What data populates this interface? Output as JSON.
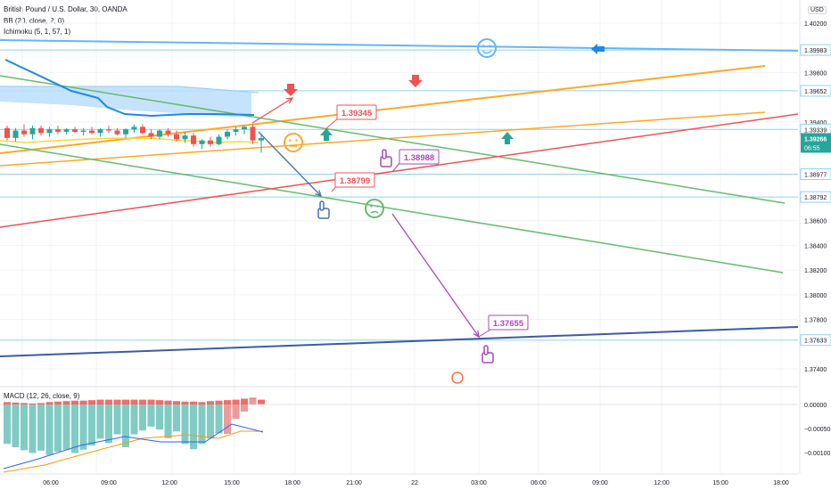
{
  "header": {
    "title": "British Pound / U.S. Dollar, 30, OANDA",
    "indicator_bb": "BB (20, close, 2, 0)",
    "indicator_ichimoku": "Ichimoku (5, 1, 57, 1)",
    "currency": "USD"
  },
  "macd_label": "MACD (12, 26, close, 9)",
  "colors": {
    "up": "#26a69a",
    "down": "#ef5350",
    "trend_green": "#66bb6a",
    "trend_orange": "#ffa726",
    "trend_red": "#ef5350",
    "trend_navy": "#3c5aa6",
    "trend_blue": "#64b5f6",
    "annotation_purple": "#ab47bc",
    "cloud": "#bbdefb",
    "conversion": "#1e88e5",
    "hline": "#8fd3f0",
    "grid": "#f0f3fa"
  },
  "chart_data": {
    "type": "candlestick",
    "symbol": "GBPUSD",
    "timeframe": "30",
    "y_ticks": [
      1.402,
      1.398,
      1.394,
      1.386,
      1.384,
      1.382,
      1.38,
      1.378,
      1.374
    ],
    "x_ticks": [
      "06:00",
      "09:00",
      "12:00",
      "15:00",
      "18:00",
      "21:00",
      "22",
      "03:00",
      "06:00",
      "09:00",
      "12:00",
      "15:00",
      "18:00"
    ],
    "price_labels": [
      {
        "text": "1.39983",
        "value": 1.39983
      },
      {
        "text": "1.39652",
        "value": 1.39652
      },
      {
        "text": "1.39339",
        "value": 1.39339
      },
      {
        "text": "1.38977",
        "value": 1.38977
      },
      {
        "text": "1.38792",
        "value": 1.38792
      },
      {
        "text": "1.37633",
        "value": 1.37633
      }
    ],
    "current_price": {
      "text": "1.39266",
      "countdown": "06:55",
      "value": 1.39266
    },
    "annotations": [
      "1.39345",
      "1.38988",
      "1.38799",
      "1.37655"
    ],
    "candles": [
      [
        1.3935,
        1.3937,
        1.3925,
        1.3927
      ],
      [
        1.3927,
        1.3935,
        1.3924,
        1.3933
      ],
      [
        1.3933,
        1.3938,
        1.3928,
        1.393
      ],
      [
        1.393,
        1.3937,
        1.3926,
        1.3935
      ],
      [
        1.3935,
        1.3937,
        1.3929,
        1.3931
      ],
      [
        1.3931,
        1.3936,
        1.3928,
        1.3934
      ],
      [
        1.3934,
        1.3937,
        1.393,
        1.3932
      ],
      [
        1.3932,
        1.3935,
        1.393,
        1.3934
      ],
      [
        1.3934,
        1.3936,
        1.3931,
        1.3932
      ],
      [
        1.3932,
        1.3935,
        1.3929,
        1.3933
      ],
      [
        1.3933,
        1.3936,
        1.393,
        1.3931
      ],
      [
        1.3931,
        1.3935,
        1.3928,
        1.3934
      ],
      [
        1.3934,
        1.3937,
        1.3931,
        1.3933
      ],
      [
        1.3933,
        1.3935,
        1.3929,
        1.393
      ],
      [
        1.393,
        1.3935,
        1.3927,
        1.3934
      ],
      [
        1.3934,
        1.3938,
        1.3931,
        1.3936
      ],
      [
        1.3936,
        1.3938,
        1.393,
        1.3931
      ],
      [
        1.3931,
        1.3934,
        1.3926,
        1.3928
      ],
      [
        1.3928,
        1.3934,
        1.3926,
        1.3933
      ],
      [
        1.3933,
        1.3935,
        1.3928,
        1.393
      ],
      [
        1.393,
        1.3933,
        1.3924,
        1.3926
      ],
      [
        1.3926,
        1.3932,
        1.3923,
        1.3929
      ],
      [
        1.3929,
        1.3931,
        1.392,
        1.3922
      ],
      [
        1.3922,
        1.3926,
        1.3918,
        1.3925
      ],
      [
        1.3925,
        1.3928,
        1.392,
        1.3922
      ],
      [
        1.3922,
        1.393,
        1.3921,
        1.3928
      ],
      [
        1.3928,
        1.3934,
        1.3926,
        1.3932
      ],
      [
        1.3932,
        1.3936,
        1.3929,
        1.3934
      ],
      [
        1.3934,
        1.3937,
        1.393,
        1.3936
      ],
      [
        1.3936,
        1.3938,
        1.3922,
        1.3925
      ],
      [
        1.3925,
        1.393,
        1.3915,
        1.3927
      ]
    ],
    "macd": {
      "histogram": [
        5e-05,
        4e-05,
        3e-05,
        2e-05,
        3e-05,
        5e-05,
        6e-05,
        7e-05,
        8e-05,
        8e-05,
        9e-05,
        0.0001,
        0.0001,
        0.0001,
        0.0001,
        0.0001,
        0.0001,
        0.0001,
        9e-05,
        8e-05,
        7e-05,
        6e-05,
        6e-05,
        5e-05,
        7e-05,
        8e-05,
        9e-05,
        0.0001,
        0.00012,
        0.00014,
        0.0001
      ],
      "bars": [
        -0.00082,
        -0.00089,
        -0.00095,
        -0.00101,
        -0.00096,
        -0.00105,
        -0.00098,
        -0.00094,
        -0.00101,
        -0.00094,
        -0.00085,
        -0.00071,
        -0.0008,
        -0.00062,
        -0.00089,
        -0.00062,
        -0.00054,
        -0.00046,
        -0.00052,
        -0.0007,
        -0.00056,
        -0.00082,
        -0.00093,
        -0.00082,
        -0.00071,
        -0.0006,
        -0.00061,
        -0.0003,
        -0.00015,
        0.00012,
        2e-05
      ],
      "y_ticks": [
        0.0,
        -0.0005,
        -0.001
      ],
      "y_tick_labels": [
        "0.00000",
        "−0.00050",
        "−0.00100"
      ]
    }
  }
}
